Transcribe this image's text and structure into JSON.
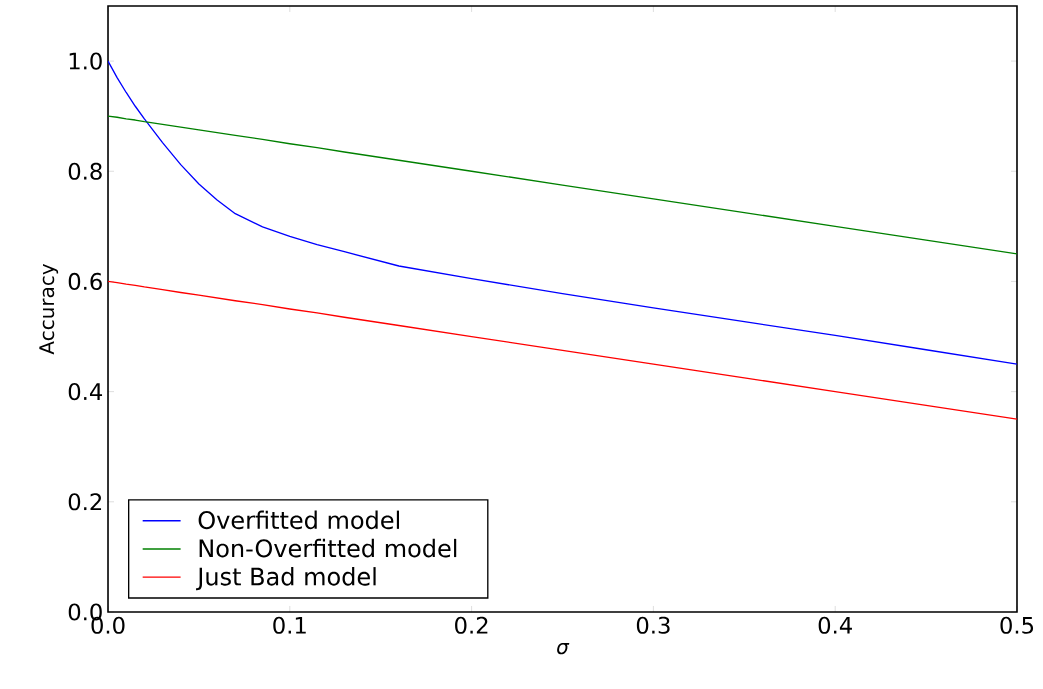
{
  "chart_data": {
    "type": "line",
    "xlabel": "σ",
    "ylabel": "Accuracy",
    "xlim": [
      0,
      0.5
    ],
    "ylim": [
      0,
      1.1
    ],
    "xticks": [
      {
        "value": 0,
        "label": "0.0"
      },
      0.1,
      0.2,
      0.3,
      0.4,
      0.5
    ],
    "yticks": [
      {
        "value": 0,
        "label": "0.0"
      },
      0.2,
      0.4,
      0.6,
      0.8,
      {
        "value": 1,
        "label": "1.0"
      }
    ],
    "x": [
      0,
      0.005,
      0.01,
      0.015,
      0.02,
      0.03,
      0.04,
      0.05,
      0.06,
      0.07,
      0.085,
      0.1,
      0.115,
      0.13,
      0.16,
      0.2,
      0.25,
      0.3,
      0.35,
      0.4,
      0.45,
      0.5
    ],
    "series": [
      {
        "name": "Overfitted model",
        "color": "#0000ff",
        "values": [
          1.0,
          0.97,
          0.943,
          0.918,
          0.895,
          0.852,
          0.812,
          0.777,
          0.748,
          0.723,
          0.699,
          0.682,
          0.667,
          0.654,
          0.628,
          0.605,
          0.578,
          0.552,
          0.527,
          0.502,
          0.476,
          0.45
        ]
      },
      {
        "name": "Non-Overfitted model",
        "color": "#008000",
        "values": [
          0.9,
          0.898,
          0.895,
          0.893,
          0.89,
          0.885,
          0.88,
          0.875,
          0.87,
          0.865,
          0.858,
          0.85,
          0.843,
          0.835,
          0.82,
          0.8,
          0.775,
          0.75,
          0.725,
          0.7,
          0.675,
          0.65
        ]
      },
      {
        "name": "Just Bad model",
        "color": "#ff0000",
        "values": [
          0.6,
          0.598,
          0.595,
          0.593,
          0.59,
          0.585,
          0.58,
          0.575,
          0.57,
          0.565,
          0.558,
          0.55,
          0.543,
          0.535,
          0.52,
          0.5,
          0.475,
          0.45,
          0.425,
          0.4,
          0.375,
          0.35
        ]
      }
    ],
    "legend": "bottom left",
    "grid": false,
    "marker": "none",
    "line_style": "solid"
  }
}
